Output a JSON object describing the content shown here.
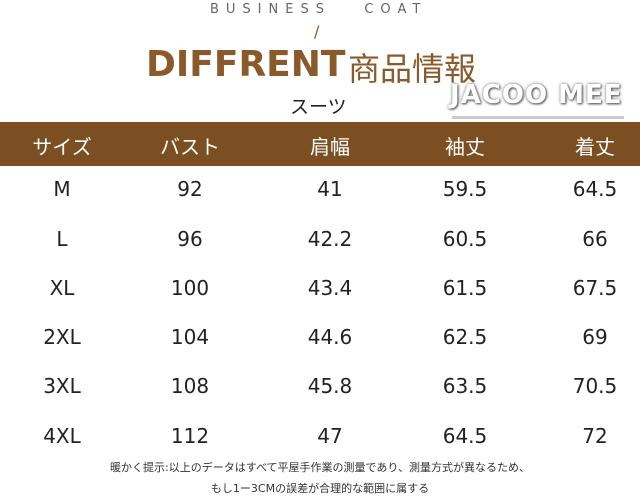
{
  "header": {
    "subtitle": "BUSINESS   COAT",
    "slash": "/",
    "title": "DIFFRENT",
    "title_jp": "商品情報",
    "item": "スーツ",
    "brand": "JACOO MEE"
  },
  "table": {
    "columns": [
      "サイズ",
      "バスト",
      "肩幅",
      "袖丈",
      "着丈"
    ],
    "rows": [
      [
        "M",
        "92",
        "41",
        "59.5",
        "64.5"
      ],
      [
        "L",
        "96",
        "42.2",
        "60.5",
        "66"
      ],
      [
        "XL",
        "100",
        "43.4",
        "61.5",
        "67.5"
      ],
      [
        "2XL",
        "104",
        "44.6",
        "62.5",
        "69"
      ],
      [
        "3XL",
        "108",
        "45.8",
        "63.5",
        "70.5"
      ],
      [
        "4XL",
        "112",
        "47",
        "64.5",
        "72"
      ]
    ]
  },
  "note": {
    "line1": "暖かく提示:以上のデータはすべて平屋手作業の測量であり、測量方式が異なるため、",
    "line2": "もし1ー3CMの誤差が合理的な範囲に属する"
  },
  "colors": {
    "accent": "#7b4f22"
  }
}
